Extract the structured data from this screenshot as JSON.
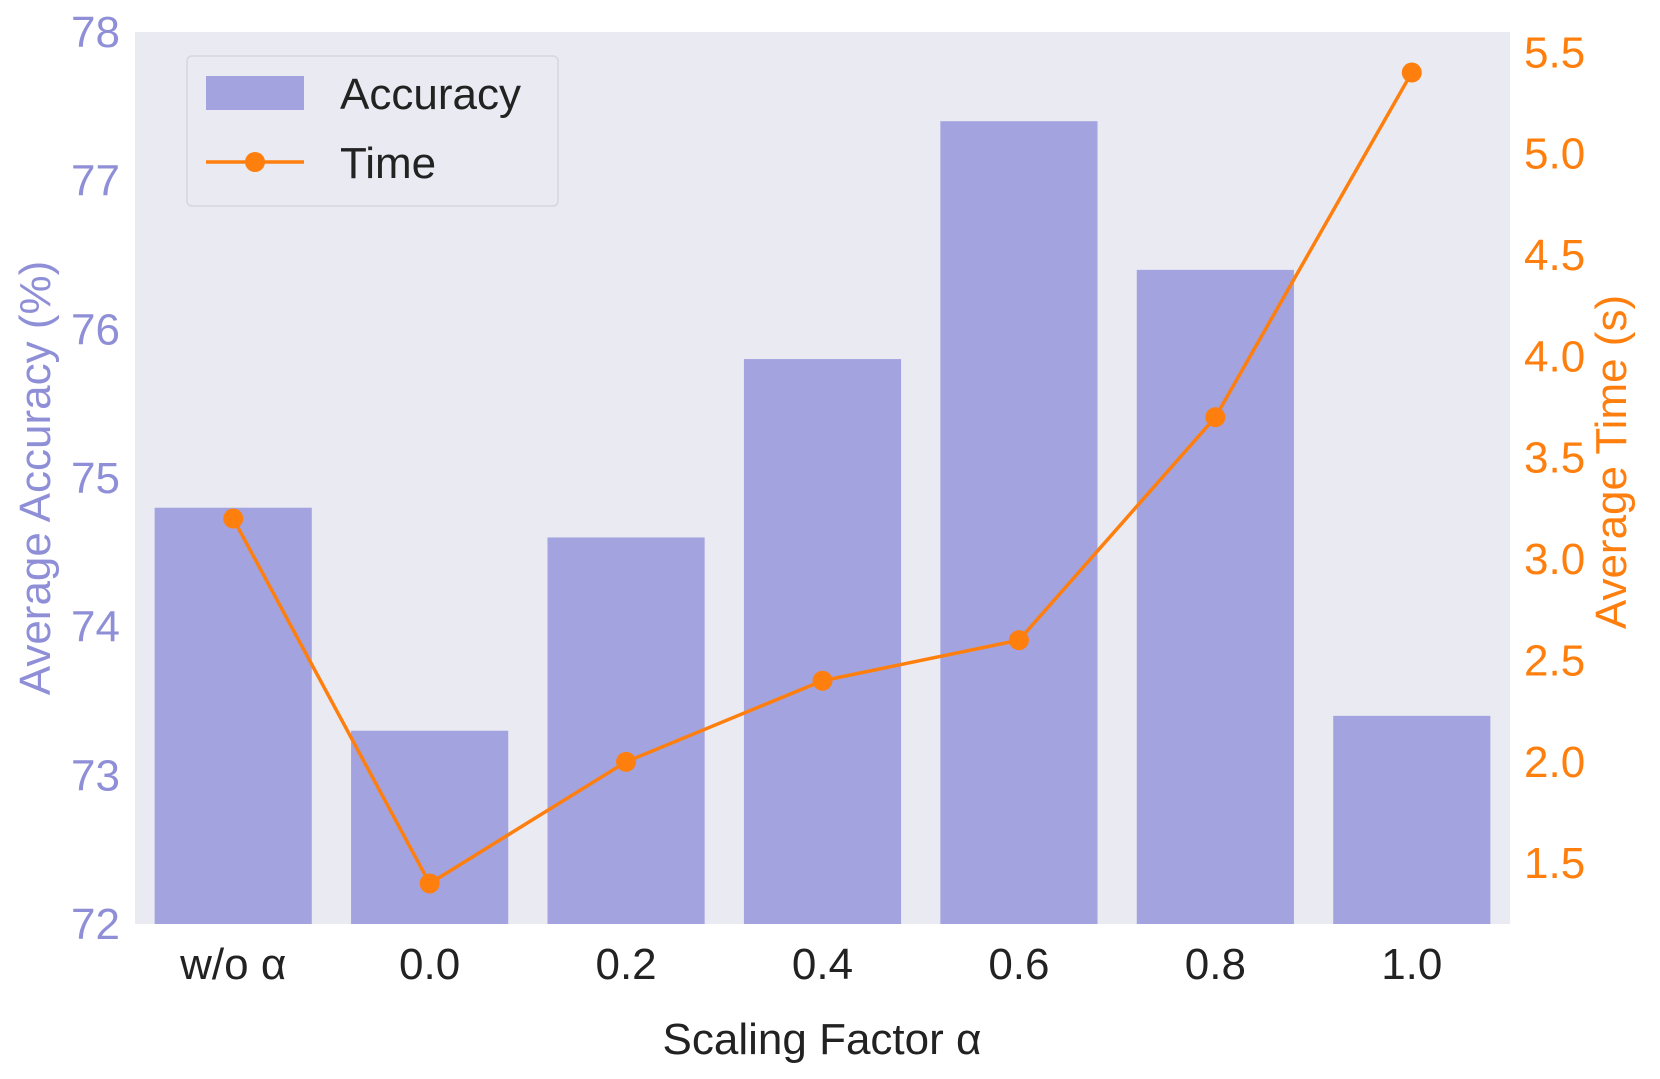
{
  "chart_data": {
    "type": "bar",
    "categories": [
      "w/o α",
      "0.0",
      "0.2",
      "0.4",
      "0.6",
      "0.8",
      "1.0"
    ],
    "series": [
      {
        "name": "Accuracy",
        "type": "bar",
        "axis": "left",
        "color": "#a3a3df",
        "values": [
          74.8,
          73.3,
          74.6,
          75.8,
          77.4,
          76.4,
          73.4
        ]
      },
      {
        "name": "Time",
        "type": "line",
        "axis": "right",
        "color": "#ff7f0e",
        "marker": "circle",
        "values": [
          3.2,
          1.4,
          2.0,
          2.4,
          2.6,
          3.7,
          5.4
        ]
      }
    ],
    "xlabel": "Scaling Factor α",
    "ylabel": "Average Accuracy (%)",
    "ylabel_right": "Average Time (s)",
    "ylim": [
      72,
      78
    ],
    "ylim_right": [
      1.2,
      5.6
    ],
    "yticks": [
      "72",
      "73",
      "74",
      "75",
      "76",
      "77",
      "78"
    ],
    "yticks_right": [
      "1.5",
      "2.0",
      "2.5",
      "3.0",
      "3.5",
      "4.0",
      "4.5",
      "5.0",
      "5.5"
    ],
    "legend_position": "top-left",
    "grid": false,
    "background": "#eaeaf2",
    "left_axis_color": "#8f8fd8",
    "right_axis_color": "#ff7f0e"
  }
}
